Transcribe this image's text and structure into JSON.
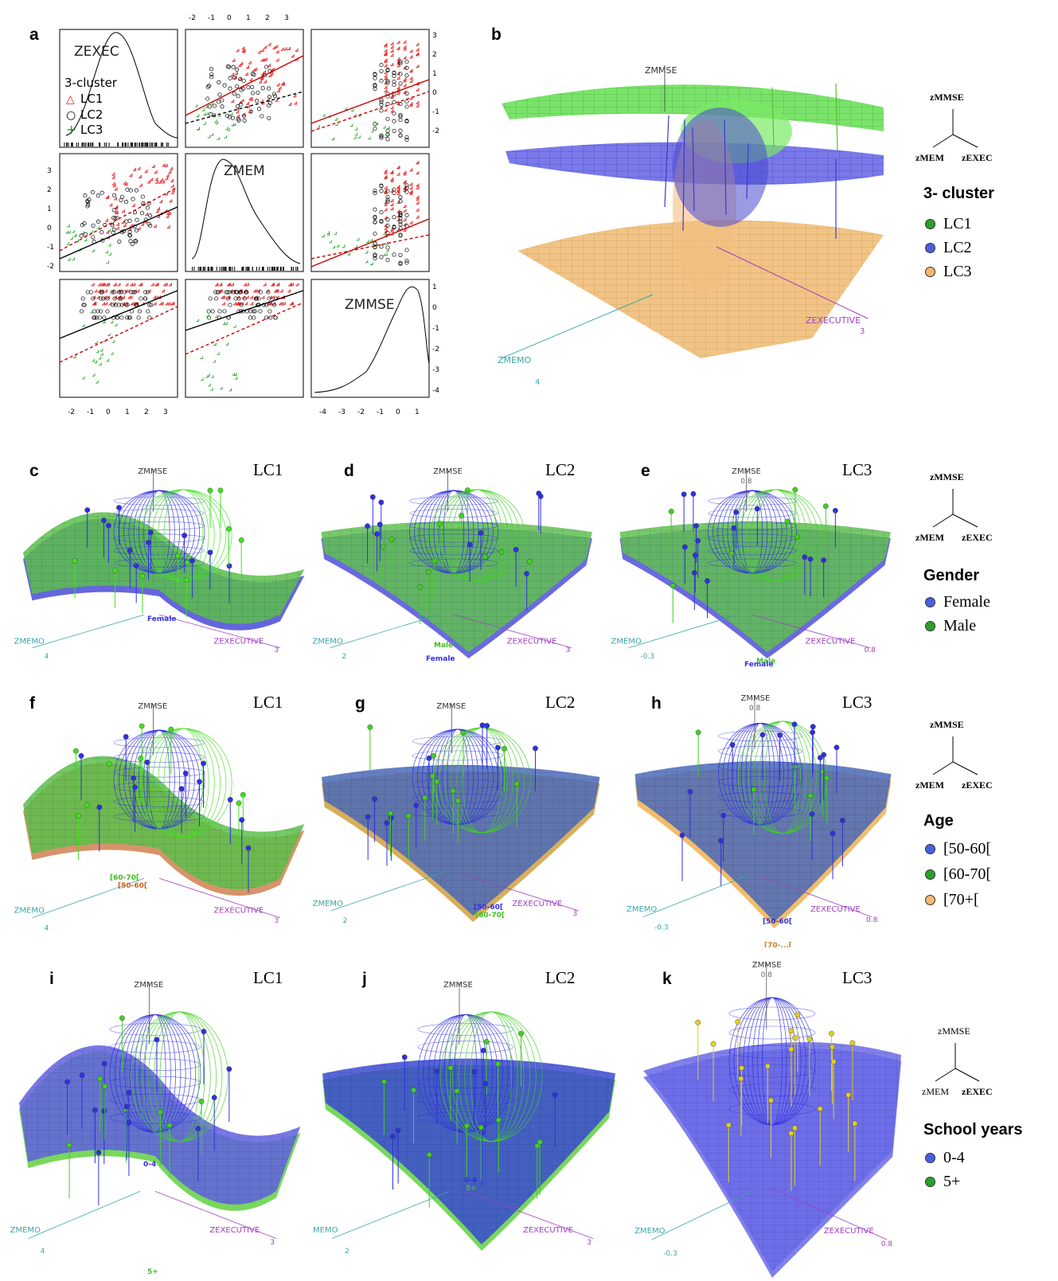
{
  "panels": {
    "a": "a",
    "b": "b",
    "c": "c",
    "d": "d",
    "e": "e",
    "f": "f",
    "g": "g",
    "h": "h",
    "i": "i",
    "j": "j",
    "k": "k"
  },
  "cluster_titles": {
    "c": "LC1",
    "d": "LC2",
    "e": "LC3",
    "f": "LC1",
    "g": "LC2",
    "h": "LC3",
    "i": "LC1",
    "j": "LC2",
    "k": "LC3"
  },
  "pairs": {
    "diag": [
      "ZEXEC",
      "ZMEM",
      "ZMMSE"
    ],
    "legend_title": "3-cluster",
    "legend_items": [
      "LC1",
      "LC2",
      "LC3"
    ],
    "top_ticks": [
      "-2",
      "-1",
      "0",
      "1",
      "2",
      "3"
    ],
    "right_ticks_top": [
      "3",
      "2",
      "1",
      "0",
      "-1",
      "-2"
    ],
    "left_ticks_mid": [
      "3",
      "2",
      "1",
      "0",
      "-1",
      "-2"
    ],
    "right_ticks_bottom": [
      "1",
      "0",
      "-1",
      "-2",
      "-3",
      "-4"
    ],
    "bottom_ticks_1": [
      "-2",
      "-1",
      "0",
      "1",
      "2",
      "3"
    ],
    "bottom_ticks_2": [
      "-4",
      "-3",
      "-2",
      "-1",
      "0",
      "1"
    ]
  },
  "axis3d": {
    "zmmse": "ZMMSE",
    "zexec": "ZEXECUTIVE",
    "zmem": "ZMEMO",
    "b_exec_val": "3",
    "b_mem_val": "4",
    "lc1_exec_val": "3",
    "lc1_mem_val": "4",
    "lc2_exec_val": "3",
    "lc2_mem_val": "2",
    "lc3_exec_val": "0.8",
    "lc3_mem_val": "-0.3",
    "lc3_mmse_val": "0.8",
    "mem_cut": "MEMO"
  },
  "surface_labels": {
    "c_female": "Female",
    "d_female": "Female",
    "d_male": "Male",
    "e_female": "Female",
    "e_male": "Male",
    "f_60": "[60-70[",
    "f_50": "[50-60[",
    "g_50": "[50-60[",
    "g_60": "[60-70[",
    "h_50": "[50-60[",
    "h_70": "[70-...[",
    "i_04": "0-4",
    "i_5": "5+",
    "j_04": "0-4",
    "j_5": "5+"
  },
  "triad": {
    "top": "zMMSE",
    "left": "zMEM",
    "right": "zEXEC"
  },
  "legends": {
    "cluster": {
      "title": "3- cluster",
      "items": [
        "LC1",
        "LC2",
        "LC3"
      ],
      "colors": [
        "#2aa02a",
        "#4a5fe0",
        "#f4b870"
      ]
    },
    "gender": {
      "title": "Gender",
      "items": [
        "Female",
        "Male"
      ],
      "colors": [
        "#4a5fe0",
        "#2aa02a"
      ]
    },
    "age": {
      "title": "Age",
      "items": [
        "[50-60[",
        "[60-70[",
        "[70+["
      ],
      "colors": [
        "#4a5fe0",
        "#2aa02a",
        "#f4b870"
      ]
    },
    "school": {
      "title": "School years",
      "items": [
        "0-4",
        "5+"
      ],
      "colors": [
        "#4a5fe0",
        "#2aa02a"
      ]
    }
  },
  "colors": {
    "red": "#e02020",
    "black": "#000000",
    "green": "#10a010",
    "blue": "#3a4ff0",
    "lime": "#5ee03a",
    "orange": "#f4b870",
    "teal": "#3aa6a6",
    "purple": "#a040c0"
  }
}
